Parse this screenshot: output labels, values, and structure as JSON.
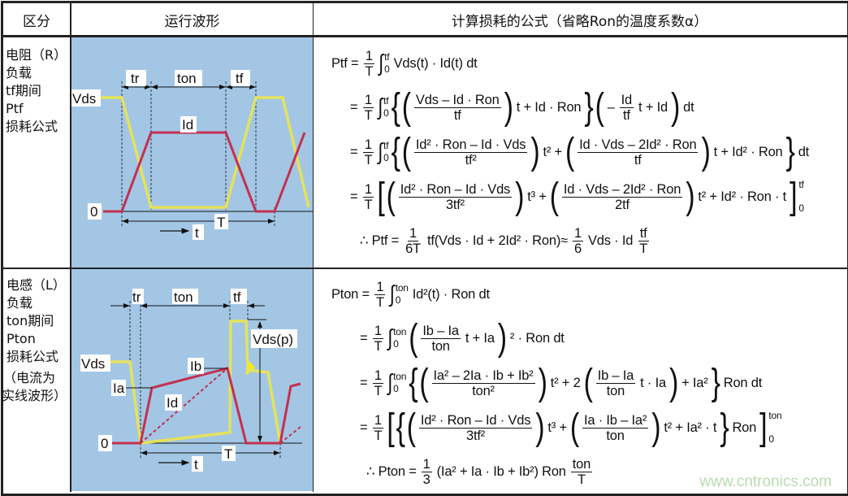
{
  "header": {
    "col1": "区分",
    "col2": "运行波形",
    "col3": "计算损耗的公式（省略Ron的温度系数α）"
  },
  "rows": [
    {
      "label_lines": [
        "电阻（R）",
        "负载",
        "tf期间",
        "Ptf",
        "损耗公式"
      ],
      "diagram": {
        "vds": "Vds",
        "id": "Id",
        "zero": "0",
        "tr": "tr",
        "ton": "ton",
        "tf": "tf",
        "T": "T",
        "t": "t"
      }
    },
    {
      "label_lines": [
        "电感（L）",
        "负载",
        "ton期间",
        "Pton",
        "损耗公式",
        "（电流为",
        "实线波形）"
      ],
      "diagram": {
        "vds": "Vds",
        "id": "Id",
        "ia": "Ia",
        "ib": "Ib",
        "vdsp": "Vds(p)",
        "zero": "0",
        "tr": "tr",
        "ton": "ton",
        "tf": "tf",
        "T": "T",
        "t": "t"
      }
    }
  ],
  "formulas": {
    "row1": [
      [
        "Ptf =",
        {
          "f": [
            "1",
            "T"
          ]
        },
        {
          "i": [
            "0",
            "tf"
          ]
        },
        "Vds(t) · Id(t) dt"
      ],
      [
        "=",
        {
          "f": [
            "1",
            "T"
          ]
        },
        {
          "i": [
            "0",
            "tf"
          ]
        },
        {
          "p": "{"
        },
        {
          "p": "("
        },
        {
          "f": [
            "Vds – Id · Ron",
            "tf"
          ]
        },
        {
          "p": ")"
        },
        "t + Id · Ron",
        {
          "p": "}"
        },
        {
          "p": "("
        },
        "–",
        {
          "f": [
            "Id",
            "tf"
          ]
        },
        "t + Id",
        {
          "p": ")"
        },
        "dt"
      ],
      [
        "=",
        {
          "f": [
            "1",
            "T"
          ]
        },
        {
          "i": [
            "0",
            "tf"
          ]
        },
        {
          "p": "{"
        },
        {
          "p": "("
        },
        {
          "f": [
            "Id² · Ron – Id · Vds",
            "tf²"
          ]
        },
        {
          "p": ")"
        },
        "t² +",
        {
          "p": "("
        },
        {
          "f": [
            "Id · Vds – 2Id² · Ron",
            "tf"
          ]
        },
        {
          "p": ")"
        },
        "t + Id² · Ron",
        {
          "p": "}"
        },
        "dt"
      ],
      [
        "=",
        {
          "f": [
            "1",
            "T"
          ]
        },
        {
          "p": "["
        },
        {
          "p": "("
        },
        {
          "f": [
            "Id² · Ron – Id · Vds",
            "3tf²"
          ]
        },
        {
          "p": ")"
        },
        "t³ +",
        {
          "p": "("
        },
        {
          "f": [
            "Id · Vds – 2Id² · Ron",
            "2tf"
          ]
        },
        {
          "p": ")"
        },
        "t² + Id² · Ron · t",
        {
          "e": [
            "0",
            "tf"
          ]
        }
      ],
      [
        "∴ Ptf =",
        {
          "f": [
            "1",
            "6T"
          ]
        },
        "tf(Vds · Id + 2Id² · Ron)≈",
        {
          "f": [
            "1",
            "6"
          ]
        },
        "Vds · Id",
        {
          "f": [
            "tf",
            "T"
          ]
        }
      ]
    ],
    "row2": [
      [
        "Pton =",
        {
          "f": [
            "1",
            "T"
          ]
        },
        {
          "i": [
            "0",
            "ton"
          ]
        },
        "Id²(t) · Ron dt"
      ],
      [
        "=",
        {
          "f": [
            "1",
            "T"
          ]
        },
        {
          "i": [
            "0",
            "ton"
          ]
        },
        {
          "p": "("
        },
        {
          "f": [
            "Ib – Ia",
            "ton"
          ]
        },
        "t + Ia",
        {
          "p": ")"
        },
        "² · Ron dt"
      ],
      [
        "=",
        {
          "f": [
            "1",
            "T"
          ]
        },
        {
          "i": [
            "0",
            "ton"
          ]
        },
        {
          "p": "{"
        },
        {
          "p": "("
        },
        {
          "f": [
            "Ia² – 2Ia · Ib + Ib²",
            "ton²"
          ]
        },
        {
          "p": ")"
        },
        "t² + 2",
        {
          "p": "("
        },
        {
          "f": [
            "Ib – Ia",
            "ton"
          ]
        },
        "t · Ia",
        {
          "p": ")"
        },
        "+ Ia²",
        {
          "p": "}"
        },
        "Ron dt"
      ],
      [
        "=",
        {
          "f": [
            "1",
            "T"
          ]
        },
        {
          "p": "["
        },
        {
          "p": "{"
        },
        {
          "p": "("
        },
        {
          "f": [
            "Id² · Ron – Id · Vds",
            "3tf²"
          ]
        },
        {
          "p": ")"
        },
        "t³ +",
        {
          "p": "("
        },
        {
          "f": [
            "Ia · Ib – Ia²",
            "ton"
          ]
        },
        {
          "p": ")"
        },
        "t² + Ia² · t",
        {
          "p": "}"
        },
        "Ron",
        {
          "e": [
            "0",
            "ton"
          ]
        }
      ],
      [
        "∴ Pton =",
        {
          "f": [
            "1",
            "3"
          ]
        },
        "(Ia² + Ia · Ib + Ib²) Ron",
        {
          "f": [
            "ton",
            "T"
          ]
        }
      ]
    ]
  },
  "watermark": "www.cntronics.com",
  "colors": {
    "waveform_bg": "#a3c6e5",
    "vds_trace": "#e4e25c",
    "id_trace": "#c33050",
    "border": "#222222"
  }
}
